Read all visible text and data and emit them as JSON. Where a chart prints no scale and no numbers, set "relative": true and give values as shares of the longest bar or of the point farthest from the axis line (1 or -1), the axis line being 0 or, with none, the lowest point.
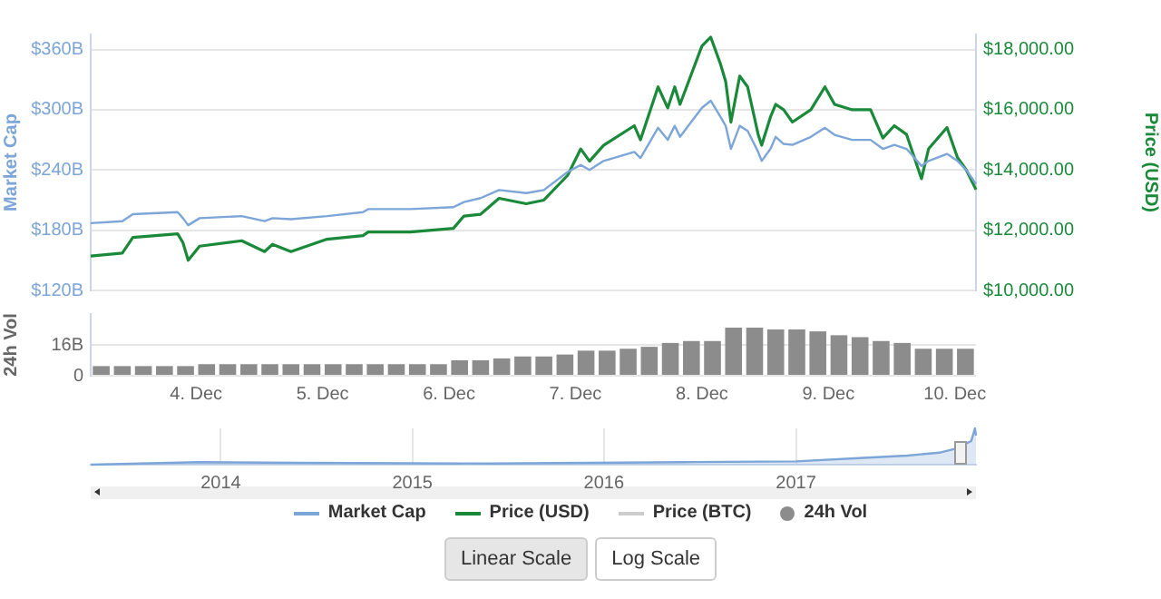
{
  "chart_data": [
    {
      "type": "line",
      "ylabel": "Market Cap",
      "y2label": "Price (USD)",
      "legend": "bottom",
      "grid": "y",
      "tick_labels": "y",
      "x": [
        "2017-12-03T04:00",
        "2017-12-03T10:00",
        "2017-12-03T12:00",
        "2017-12-03T20:30",
        "2017-12-03T21:30",
        "2017-12-03T22:30",
        "2017-12-04T00:40",
        "2017-12-04T08:40",
        "2017-12-04T13:00",
        "2017-12-04T14:30",
        "2017-12-04T18:00",
        "2017-12-05T00:50",
        "2017-12-05T07:40",
        "2017-12-05T08:40",
        "2017-12-05T16:40",
        "2017-12-06T00:50",
        "2017-12-06T02:50",
        "2017-12-06T06:00",
        "2017-12-06T09:30",
        "2017-12-06T14:40",
        "2017-12-06T18:00",
        "2017-12-06T22:30",
        "2017-12-07T01:00",
        "2017-12-07T02:40",
        "2017-12-07T05:20",
        "2017-12-07T11:10",
        "2017-12-07T12:20",
        "2017-12-07T15:40",
        "2017-12-07T17:30",
        "2017-12-07T18:50",
        "2017-12-07T19:50",
        "2017-12-08T00:00",
        "2017-12-08T01:40",
        "2017-12-08T03:30",
        "2017-12-08T04:30",
        "2017-12-08T05:30",
        "2017-12-08T07:10",
        "2017-12-08T08:40",
        "2017-12-08T10:40",
        "2017-12-08T11:20",
        "2017-12-08T13:00",
        "2017-12-08T14:00",
        "2017-12-08T15:30",
        "2017-12-08T17:10",
        "2017-12-08T20:40",
        "2017-12-08T23:20",
        "2017-12-09T01:10",
        "2017-12-09T04:30",
        "2017-12-09T08:00",
        "2017-12-09T10:20",
        "2017-12-09T12:30",
        "2017-12-09T14:50",
        "2017-12-09T17:40",
        "2017-12-09T19:00",
        "2017-12-09T22:30",
        "2017-12-10T00:30",
        "2017-12-10T02:10",
        "2017-12-10T04:00"
      ],
      "xlim": [
        "2017-12-03T04:00",
        "2017-12-10T04:00"
      ],
      "ylim": [
        120,
        375
      ],
      "yticks": [
        {
          "value": 120,
          "label": "$120B"
        },
        {
          "value": 180,
          "label": "$180B"
        },
        {
          "value": 240,
          "label": "$240B"
        },
        {
          "value": 300,
          "label": "$300B"
        },
        {
          "value": 360,
          "label": "$360B"
        }
      ],
      "y2lim": [
        10000,
        18500
      ],
      "y2ticks": [
        {
          "value": 10000,
          "label": "$10,000.00"
        },
        {
          "value": 12000,
          "label": "$12,000.00"
        },
        {
          "value": 14000,
          "label": "$14,000.00"
        },
        {
          "value": 16000,
          "label": "$16,000.00"
        },
        {
          "value": 18000,
          "label": "$18,000.00"
        }
      ],
      "series": [
        {
          "name": "Market Cap",
          "color": "#7ca5d8",
          "values": [
            187,
            189,
            196,
            198,
            192,
            185,
            192,
            194,
            189,
            192,
            191,
            194,
            198,
            201,
            201,
            203,
            208,
            212,
            220,
            217,
            220,
            238,
            245,
            240,
            249,
            258,
            252,
            282,
            270,
            284,
            273,
            302,
            309,
            293,
            284,
            261,
            284,
            279,
            258,
            249,
            261,
            273,
            266,
            265,
            273,
            282,
            275,
            270,
            270,
            261,
            265,
            261,
            244,
            249,
            256,
            249,
            240,
            226
          ]
        },
        {
          "name": "Price (USD)",
          "color": "#1a8a3a",
          "axis": "y2",
          "values": [
            11140,
            11240,
            11760,
            11880,
            11590,
            11000,
            11470,
            11650,
            11290,
            11530,
            11290,
            11700,
            11820,
            11940,
            11940,
            12060,
            12470,
            12530,
            13060,
            12880,
            13000,
            13820,
            14700,
            14290,
            14820,
            15470,
            15000,
            16760,
            16060,
            16760,
            16180,
            18120,
            18410,
            17530,
            16940,
            15590,
            17120,
            16760,
            15180,
            14820,
            15760,
            16180,
            16000,
            15590,
            16000,
            16760,
            16180,
            16000,
            16000,
            15060,
            15470,
            15180,
            13710,
            14700,
            15410,
            14410,
            14000,
            13350
          ]
        },
        {
          "name": "Price (BTC)",
          "color": "#cccccc",
          "values": [
            null,
            null,
            null,
            null,
            null,
            null,
            null,
            null,
            null,
            null,
            null,
            null,
            null,
            null,
            null,
            null,
            null,
            null,
            null,
            null,
            null,
            null,
            null,
            null,
            null,
            null,
            null,
            null,
            null,
            null,
            null,
            null,
            null,
            null,
            null,
            null,
            null,
            null,
            null,
            null,
            null,
            null,
            null,
            null,
            null,
            null,
            null,
            null,
            null,
            null,
            null,
            null,
            null,
            null,
            null,
            null,
            null,
            null
          ]
        }
      ]
    },
    {
      "type": "bar",
      "ylabel": "24h Vol",
      "legend": "bottom",
      "grid": "y",
      "x": [
        "2017-12-03T06:00",
        "2017-12-03T10:00",
        "2017-12-03T14:00",
        "2017-12-03T18:00",
        "2017-12-03T22:00",
        "2017-12-04T02:00",
        "2017-12-04T06:00",
        "2017-12-04T10:00",
        "2017-12-04T14:00",
        "2017-12-04T18:00",
        "2017-12-04T22:00",
        "2017-12-05T02:00",
        "2017-12-05T06:00",
        "2017-12-05T10:00",
        "2017-12-05T14:00",
        "2017-12-05T18:00",
        "2017-12-05T22:00",
        "2017-12-06T02:00",
        "2017-12-06T06:00",
        "2017-12-06T10:00",
        "2017-12-06T14:00",
        "2017-12-06T18:00",
        "2017-12-06T22:00",
        "2017-12-07T02:00",
        "2017-12-07T06:00",
        "2017-12-07T10:00",
        "2017-12-07T14:00",
        "2017-12-07T18:00",
        "2017-12-07T22:00",
        "2017-12-08T02:00",
        "2017-12-08T06:00",
        "2017-12-08T10:00",
        "2017-12-08T14:00",
        "2017-12-08T18:00",
        "2017-12-08T22:00",
        "2017-12-09T02:00",
        "2017-12-09T06:00",
        "2017-12-09T10:00",
        "2017-12-09T14:00",
        "2017-12-09T18:00",
        "2017-12-09T22:00",
        "2017-12-10T02:00"
      ],
      "xlim": [
        "2017-12-03T04:00",
        "2017-12-10T04:00"
      ],
      "xticks": [
        {
          "value": "2017-12-04",
          "label": "4. Dec"
        },
        {
          "value": "2017-12-05",
          "label": "5. Dec"
        },
        {
          "value": "2017-12-06",
          "label": "6. Dec"
        },
        {
          "value": "2017-12-07",
          "label": "7. Dec"
        },
        {
          "value": "2017-12-08",
          "label": "8. Dec"
        },
        {
          "value": "2017-12-09",
          "label": "9. Dec"
        },
        {
          "value": "2017-12-10",
          "label": "10. Dec"
        }
      ],
      "ylim": [
        0,
        32
      ],
      "yticks": [
        0,
        {
          "value": 16,
          "label": "16B"
        }
      ],
      "series": [
        {
          "name": "24h Vol",
          "color": "#8c8c8c",
          "values": [
            5,
            5,
            5,
            5,
            5,
            6,
            6,
            6,
            6,
            6,
            6,
            6,
            6,
            6,
            6,
            6,
            6,
            8,
            8,
            9,
            10,
            10,
            11,
            13,
            13,
            14,
            15,
            17,
            18,
            18,
            25,
            25,
            24,
            24,
            23,
            21,
            20,
            18,
            17,
            14,
            14,
            14
          ]
        }
      ]
    },
    {
      "type": "area",
      "relative": true,
      "grid": "x",
      "tick_labels": "x",
      "x": [
        "2013-04-28",
        "2013-11-20",
        "2014-06-01",
        "2015-06-01",
        "2016-06-01",
        "2017-01-01",
        "2017-05-01",
        "2017-08-01",
        "2017-10-01",
        "2017-11-01",
        "2017-12-01",
        "2017-12-08",
        "2017-12-10"
      ],
      "xlim": [
        "2013-04-28",
        "2017-12-10"
      ],
      "xticks": [
        "2014",
        "2015",
        "2016",
        "2017"
      ],
      "series": [
        {
          "color": "#7ca5d8",
          "values": [
            0,
            0.07,
            0.05,
            0.03,
            0.07,
            0.09,
            0.18,
            0.25,
            0.33,
            0.44,
            0.65,
            1,
            0.8
          ]
        }
      ],
      "annotations": [
        "Linear Scale",
        "Log Scale"
      ]
    }
  ]
}
